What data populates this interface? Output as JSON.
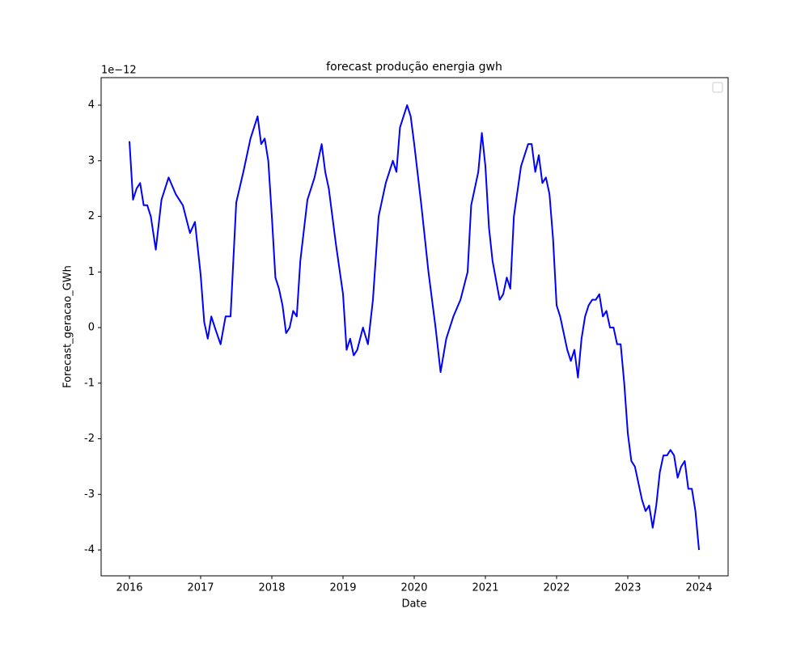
{
  "chart_data": {
    "type": "line",
    "title": "forecast produção energia gwh",
    "x_label": "Date",
    "y_label": "Forecast_geracao_GWh",
    "y_offset_text": "1e−12",
    "color": "#0000ff",
    "legend": "upper right",
    "x": [
      2016.0,
      2016.05,
      2016.1,
      2016.15,
      2016.2,
      2016.25,
      2016.3,
      2016.37,
      2016.45,
      2016.55,
      2016.65,
      2016.75,
      2016.85,
      2016.92,
      2017.0,
      2017.05,
      2017.1,
      2017.15,
      2017.2,
      2017.28,
      2017.35,
      2017.42,
      2017.5,
      2017.6,
      2017.7,
      2017.8,
      2017.85,
      2017.9,
      2017.95,
      2018.0,
      2018.05,
      2018.1,
      2018.15,
      2018.2,
      2018.25,
      2018.3,
      2018.35,
      2018.4,
      2018.5,
      2018.6,
      2018.7,
      2018.75,
      2018.8,
      2018.9,
      2019.0,
      2019.05,
      2019.1,
      2019.15,
      2019.2,
      2019.28,
      2019.35,
      2019.42,
      2019.5,
      2019.6,
      2019.7,
      2019.75,
      2019.8,
      2019.9,
      2019.95,
      2020.0,
      2020.1,
      2020.2,
      2020.3,
      2020.37,
      2020.45,
      2020.55,
      2020.65,
      2020.75,
      2020.8,
      2020.9,
      2020.95,
      2021.0,
      2021.05,
      2021.1,
      2021.2,
      2021.25,
      2021.3,
      2021.35,
      2021.4,
      2021.5,
      2021.6,
      2021.65,
      2021.7,
      2021.75,
      2021.8,
      2021.85,
      2021.9,
      2021.95,
      2022.0,
      2022.05,
      2022.1,
      2022.15,
      2022.2,
      2022.25,
      2022.3,
      2022.35,
      2022.4,
      2022.45,
      2022.5,
      2022.55,
      2022.6,
      2022.65,
      2022.7,
      2022.75,
      2022.8,
      2022.85,
      2022.9,
      2022.95,
      2023.0,
      2023.05,
      2023.1,
      2023.15,
      2023.2,
      2023.25,
      2023.3,
      2023.35,
      2023.4,
      2023.45,
      2023.5,
      2023.55,
      2023.6,
      2023.65,
      2023.7,
      2023.75,
      2023.8,
      2023.85,
      2023.9,
      2023.95,
      2024.0
    ],
    "series": [
      {
        "color": "#0000ff",
        "values": [
          3.35,
          2.3,
          2.5,
          2.6,
          2.2,
          2.2,
          2.0,
          1.4,
          2.3,
          2.7,
          2.4,
          2.2,
          1.7,
          1.9,
          0.95,
          0.1,
          -0.2,
          0.2,
          0.0,
          -0.3,
          0.2,
          0.2,
          2.25,
          2.8,
          3.4,
          3.8,
          3.3,
          3.4,
          3.0,
          2.0,
          0.9,
          0.7,
          0.4,
          -0.1,
          0.0,
          0.3,
          0.2,
          1.2,
          2.3,
          2.7,
          3.3,
          2.8,
          2.5,
          1.5,
          0.6,
          -0.4,
          -0.2,
          -0.5,
          -0.4,
          0.0,
          -0.3,
          0.5,
          2.0,
          2.6,
          3.0,
          2.8,
          3.6,
          4.0,
          3.8,
          3.3,
          2.2,
          1.0,
          0.0,
          -0.8,
          -0.2,
          0.2,
          0.5,
          1.0,
          2.2,
          2.8,
          3.5,
          2.9,
          1.8,
          1.2,
          0.5,
          0.6,
          0.9,
          0.7,
          2.0,
          2.9,
          3.3,
          3.3,
          2.8,
          3.1,
          2.6,
          2.7,
          2.4,
          1.6,
          0.4,
          0.2,
          -0.1,
          -0.4,
          -0.6,
          -0.4,
          -0.9,
          -0.2,
          0.2,
          0.4,
          0.5,
          0.5,
          0.6,
          0.2,
          0.3,
          0.0,
          0.0,
          -0.3,
          -0.3,
          -1.0,
          -1.9,
          -2.4,
          -2.5,
          -2.8,
          -3.1,
          -3.3,
          -3.2,
          -3.6,
          -3.2,
          -2.6,
          -2.3,
          -2.3,
          -2.2,
          -2.3,
          -2.7,
          -2.5,
          -2.4,
          -2.9,
          -2.9,
          -3.3,
          -4.0
        ]
      }
    ],
    "xlim": [
      2015.602,
      2024.409
    ],
    "xticks": [
      2016,
      2017,
      2018,
      2019,
      2020,
      2021,
      2022,
      2023,
      2024
    ],
    "ylim": [
      -4.465,
      4.495
    ],
    "yticks": [
      -4,
      -3,
      -2,
      -1,
      0,
      1,
      2,
      3,
      4
    ]
  }
}
